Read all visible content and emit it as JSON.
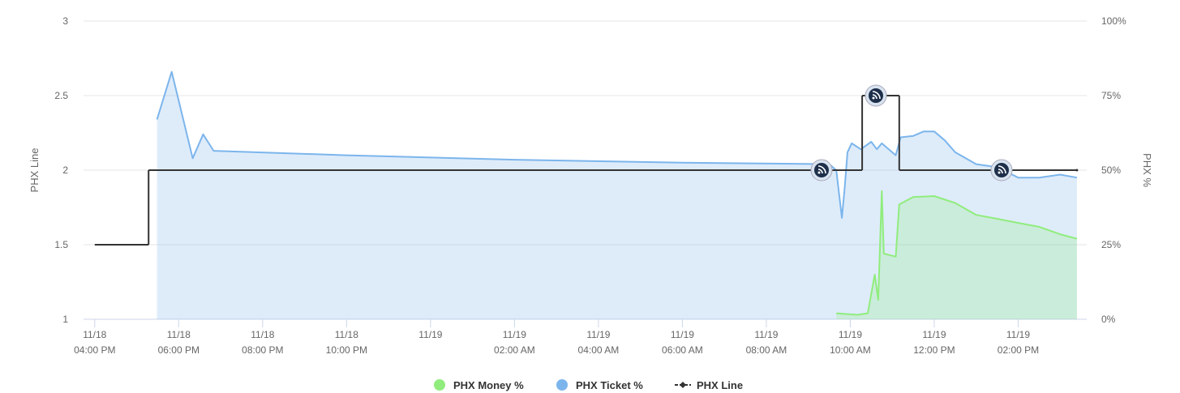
{
  "chart_data": {
    "type": "line",
    "y_title": "PHX Line",
    "y2_title": "PHX %",
    "xlim": [
      "11/18 15:44",
      "11/19 15:38"
    ],
    "xticks": [
      {
        "value": "11/18 16:00",
        "label": [
          "11/18",
          "04:00 PM"
        ]
      },
      {
        "value": "11/18 18:00",
        "label": [
          "11/18",
          "06:00 PM"
        ]
      },
      {
        "value": "11/18 20:00",
        "label": [
          "11/18",
          "08:00 PM"
        ]
      },
      {
        "value": "11/18 22:00",
        "label": [
          "11/18",
          "10:00 PM"
        ]
      },
      {
        "value": "11/19 00:00",
        "label": [
          "11/19"
        ]
      },
      {
        "value": "11/19 02:00",
        "label": [
          "11/19",
          "02:00 AM"
        ]
      },
      {
        "value": "11/19 04:00",
        "label": [
          "11/19",
          "04:00 AM"
        ]
      },
      {
        "value": "11/19 06:00",
        "label": [
          "11/19",
          "06:00 AM"
        ]
      },
      {
        "value": "11/19 08:00",
        "label": [
          "11/19",
          "08:00 AM"
        ]
      },
      {
        "value": "11/19 10:00",
        "label": [
          "11/19",
          "10:00 AM"
        ]
      },
      {
        "value": "11/19 12:00",
        "label": [
          "11/19",
          "12:00 PM"
        ]
      },
      {
        "value": "11/19 14:00",
        "label": [
          "11/19",
          "02:00 PM"
        ]
      }
    ],
    "ylim": [
      1,
      3
    ],
    "yticks": [
      1,
      1.5,
      2,
      2.5,
      3
    ],
    "y2lim": [
      0,
      100
    ],
    "y2ticks": [
      {
        "value": 0,
        "label": "0%"
      },
      {
        "value": 25,
        "label": "25%"
      },
      {
        "value": 50,
        "label": "50%"
      },
      {
        "value": 75,
        "label": "75%"
      },
      {
        "value": 100,
        "label": "100%"
      }
    ],
    "grid": true,
    "legend": "bottom",
    "series": [
      {
        "name": "PHX Money %",
        "color": "#90ed7d",
        "axis": "y2",
        "style": "area",
        "x": [
          "11/19 09:40",
          "11/19 10:10",
          "11/19 10:25",
          "11/19 10:35",
          "11/19 10:40",
          "11/19 10:45",
          "11/19 10:48",
          "11/19 11:05",
          "11/19 11:10",
          "11/19 11:30",
          "11/19 12:00",
          "11/19 12:30",
          "11/19 13:00",
          "11/19 13:30",
          "11/19 14:00",
          "11/19 14:30",
          "11/19 15:00",
          "11/19 15:24"
        ],
        "values": [
          2,
          1.5,
          2,
          15,
          6.5,
          43,
          22,
          21,
          38.5,
          41,
          41.3,
          39,
          35,
          33.7,
          32.3,
          31,
          28.5,
          27
        ]
      },
      {
        "name": "PHX Ticket %",
        "color": "#7cb5ec",
        "axis": "y2",
        "style": "area",
        "x": [
          "11/18 17:29",
          "11/18 17:50",
          "11/18 18:20",
          "11/18 18:35",
          "11/18 18:50",
          "11/18 22:00",
          "11/19 02:00",
          "11/19 06:00",
          "11/19 09:30",
          "11/19 09:40",
          "11/19 09:48",
          "11/19 09:52",
          "11/19 09:56",
          "11/19 10:02",
          "11/19 10:15",
          "11/19 10:30",
          "11/19 10:38",
          "11/19 10:45",
          "11/19 11:05",
          "11/19 11:12",
          "11/19 11:30",
          "11/19 11:45",
          "11/19 12:00",
          "11/19 12:15",
          "11/19 12:30",
          "11/19 13:00",
          "11/19 13:30",
          "11/19 14:00",
          "11/19 14:30",
          "11/19 15:00",
          "11/19 15:24"
        ],
        "values": [
          67,
          83,
          54,
          62,
          56.5,
          55,
          53.5,
          52.5,
          52,
          50,
          34,
          44,
          56,
          59,
          57,
          59.5,
          57,
          59,
          55,
          61,
          61.5,
          63,
          63,
          60,
          56,
          52,
          51,
          47.5,
          47.5,
          48.5,
          47.5
        ]
      },
      {
        "name": "PHX Line",
        "color": "#333333",
        "axis": "y",
        "style": "step",
        "x": [
          "11/18 16:00",
          "11/18 17:17",
          "11/19 10:17",
          "11/19 11:10",
          "11/19 15:24"
        ],
        "values": [
          1.5,
          2,
          2.5,
          2,
          2
        ]
      }
    ]
  }
}
